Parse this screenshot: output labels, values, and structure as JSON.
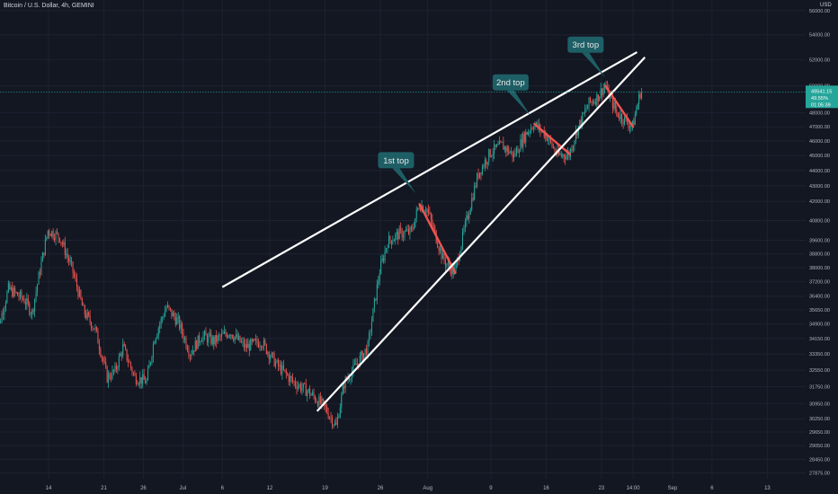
{
  "header": {
    "title": "Bitcoin / U.S. Dollar, 4h, GEMINI",
    "unit": "USD"
  },
  "colors": {
    "background": "#131722",
    "grid": "#1e2230",
    "up": "#26a69a",
    "down": "#ef5350",
    "trendline": "#ffffff",
    "callout": "#1e5f66",
    "last_price_bg": "#26a69a"
  },
  "last_price": {
    "value": "49541.15",
    "change": "49.55%",
    "countdown": "01:05:39"
  },
  "chart_data": {
    "type": "candlestick",
    "y_scale": "log",
    "ylim": [
      27500,
      56000
    ],
    "y_ticks": [
      "56000.00",
      "54000.00",
      "52000.00",
      "50000.00",
      "48000.00",
      "47000.00",
      "46000.00",
      "45000.00",
      "44000.00",
      "43000.00",
      "42000.00",
      "40800.00",
      "39600.00",
      "38800.00",
      "38000.00",
      "37200.00",
      "36400.00",
      "35650.00",
      "34900.00",
      "34150.00",
      "33350.00",
      "32550.00",
      "31750.00",
      "30950.00",
      "30250.00",
      "29650.00",
      "29050.00",
      "28450.00",
      "27875.00"
    ],
    "x_ticks": [
      {
        "label": "14",
        "date": "2021-06-14"
      },
      {
        "label": "21",
        "date": "2021-06-21"
      },
      {
        "label": "26",
        "date": "2021-06-26"
      },
      {
        "label": "Jul",
        "date": "2021-07-01"
      },
      {
        "label": "6",
        "date": "2021-07-06"
      },
      {
        "label": "12",
        "date": "2021-07-12"
      },
      {
        "label": "19",
        "date": "2021-07-19"
      },
      {
        "label": "26",
        "date": "2021-07-26"
      },
      {
        "label": "Aug",
        "date": "2021-08-01"
      },
      {
        "label": "9",
        "date": "2021-08-09"
      },
      {
        "label": "16",
        "date": "2021-08-16"
      },
      {
        "label": "23",
        "date": "2021-08-23"
      },
      {
        "label": "14:00",
        "date": "2021-08-27"
      },
      {
        "label": "Sep",
        "date": "2021-09-01"
      },
      {
        "label": "6",
        "date": "2021-09-06"
      },
      {
        "label": "13",
        "date": "2021-09-13"
      }
    ],
    "price_path": [
      [
        "2021-06-07T00:00",
        33500
      ],
      [
        "2021-06-09T00:00",
        36800
      ],
      [
        "2021-06-11T00:00",
        36200
      ],
      [
        "2021-06-12T00:00",
        35500
      ],
      [
        "2021-06-14T00:00",
        40200
      ],
      [
        "2021-06-15T12:00",
        39800
      ],
      [
        "2021-06-17T00:00",
        38000
      ],
      [
        "2021-06-18T12:00",
        35600
      ],
      [
        "2021-06-20T00:00",
        34600
      ],
      [
        "2021-06-21T12:00",
        32200
      ],
      [
        "2021-06-22T12:00",
        32500
      ],
      [
        "2021-06-23T12:00",
        33700
      ],
      [
        "2021-06-25T00:00",
        32200
      ],
      [
        "2021-06-26T12:00",
        32000
      ],
      [
        "2021-06-27T12:00",
        34200
      ],
      [
        "2021-06-29T00:00",
        35800
      ],
      [
        "2021-06-30T12:00",
        35000
      ],
      [
        "2021-07-02T00:00",
        33400
      ],
      [
        "2021-07-03T12:00",
        34300
      ],
      [
        "2021-07-05T00:00",
        34000
      ],
      [
        "2021-07-07T00:00",
        34500
      ],
      [
        "2021-07-09T00:00",
        33700
      ],
      [
        "2021-07-11T00:00",
        34000
      ],
      [
        "2021-07-13T00:00",
        32800
      ],
      [
        "2021-07-15T00:00",
        32000
      ],
      [
        "2021-07-17T00:00",
        31500
      ],
      [
        "2021-07-19T00:00",
        30800
      ],
      [
        "2021-07-20T12:00",
        29900
      ],
      [
        "2021-07-21T12:00",
        31900
      ],
      [
        "2021-07-23T00:00",
        32800
      ],
      [
        "2021-07-24T12:00",
        33700
      ],
      [
        "2021-07-26T00:00",
        37800
      ],
      [
        "2021-07-27T00:00",
        39500
      ],
      [
        "2021-07-28T12:00",
        40000
      ],
      [
        "2021-07-30T00:00",
        40100
      ],
      [
        "2021-07-31T00:00",
        41800
      ],
      [
        "2021-08-01T00:00",
        41500
      ],
      [
        "2021-08-03T00:00",
        38500
      ],
      [
        "2021-08-04T12:00",
        37700
      ],
      [
        "2021-08-06T00:00",
        40800
      ],
      [
        "2021-08-07T12:00",
        43800
      ],
      [
        "2021-08-09T00:00",
        45200
      ],
      [
        "2021-08-10T12:00",
        45700
      ],
      [
        "2021-08-12T00:00",
        45000
      ],
      [
        "2021-08-13T12:00",
        46500
      ],
      [
        "2021-08-14T12:00",
        47200
      ],
      [
        "2021-08-16T00:00",
        46500
      ],
      [
        "2021-08-17T12:00",
        45000
      ],
      [
        "2021-08-19T00:00",
        45100
      ],
      [
        "2021-08-20T00:00",
        46800
      ],
      [
        "2021-08-21T12:00",
        48700
      ],
      [
        "2021-08-22T12:00",
        49100
      ],
      [
        "2021-08-23T12:00",
        50000
      ],
      [
        "2021-08-25T00:00",
        48000
      ],
      [
        "2021-08-26T00:00",
        47500
      ],
      [
        "2021-08-27T00:00",
        47000
      ],
      [
        "2021-08-28T00:00",
        49500
      ]
    ],
    "annotations": [
      {
        "text": "1st top",
        "date": "2021-07-30T12:00",
        "price": 42500
      },
      {
        "text": "2nd top",
        "date": "2021-08-14T00:00",
        "price": 47800
      },
      {
        "text": "3rd top",
        "date": "2021-08-23T12:00",
        "price": 50600
      }
    ],
    "trendlines": [
      {
        "from": [
          "2021-07-06T00:00",
          36900
        ],
        "to": [
          "2021-08-27T12:00",
          52600
        ]
      },
      {
        "from": [
          "2021-07-18T00:00",
          30600
        ],
        "to": [
          "2021-08-28T12:00",
          52200
        ]
      }
    ]
  }
}
